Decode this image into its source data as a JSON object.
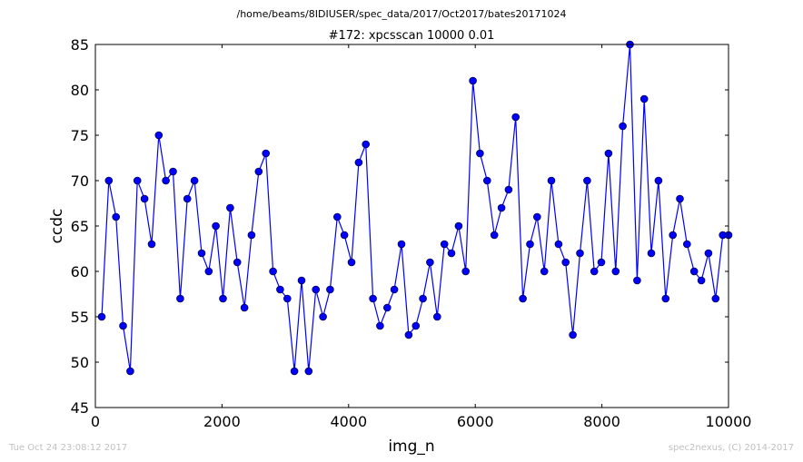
{
  "chart_data": {
    "type": "line",
    "suptitle": "/home/beams/8IDIUSER/spec_data/2017/Oct2017/bates20171024",
    "title": "#172: xpcsscan 10000 0.01",
    "xlabel": "img_n",
    "ylabel": "ccdc",
    "xlim": [
      0,
      10000
    ],
    "ylim": [
      45,
      85
    ],
    "xticks": [
      0,
      2000,
      4000,
      6000,
      8000,
      10000
    ],
    "yticks": [
      45,
      50,
      55,
      60,
      65,
      70,
      75,
      80,
      85
    ],
    "grid": false,
    "legend": "none",
    "line_color": "#0000ff",
    "marker_color": "#0000ff",
    "series": [
      {
        "x": [
          100,
          212,
          325,
          438,
          551,
          663,
          776,
          889,
          1001,
          1114,
          1227,
          1340,
          1452,
          1565,
          1678,
          1791,
          1903,
          2016,
          2129,
          2241,
          2354,
          2467,
          2580,
          2693,
          2806,
          2918,
          3031,
          3144,
          3257,
          3369,
          3482,
          3595,
          3708,
          3820,
          3933,
          4046,
          4159,
          4271,
          4384,
          4497,
          4610,
          4722,
          4835,
          4948,
          5061,
          5173,
          5286,
          5399,
          5512,
          5624,
          5737,
          5850,
          5963,
          6075,
          6188,
          6301,
          6414,
          6526,
          6639,
          6752,
          6865,
          6977,
          7090,
          7203,
          7316,
          7428,
          7541,
          7654,
          7767,
          7879,
          7992,
          8105,
          8218,
          8330,
          8443,
          8556,
          8669,
          8781,
          8894,
          9007,
          9120,
          9232,
          9345,
          9458,
          9571,
          9683,
          9796,
          9909,
          10000
        ],
        "y": [
          55,
          70,
          66,
          54,
          49,
          70,
          68,
          63,
          75,
          70,
          71,
          57,
          68,
          70,
          62,
          60,
          65,
          57,
          67,
          61,
          56,
          64,
          71,
          73,
          60,
          58,
          57,
          49,
          59,
          49,
          58,
          55,
          58,
          66,
          64,
          61,
          72,
          74,
          57,
          54,
          56,
          58,
          63,
          53,
          54,
          57,
          61,
          55,
          63,
          62,
          65,
          60,
          81,
          73,
          70,
          64,
          67,
          69,
          77,
          57,
          63,
          66,
          60,
          70,
          63,
          61,
          53,
          62,
          70,
          60,
          61,
          73,
          60,
          76,
          85,
          59,
          79,
          62,
          70,
          57,
          64,
          68,
          63,
          60,
          59,
          62,
          57,
          64,
          64
        ]
      }
    ]
  },
  "footer": {
    "left": "Tue Oct 24 23:08:12 2017",
    "right": "spec2nexus, (C) 2014-2017"
  }
}
